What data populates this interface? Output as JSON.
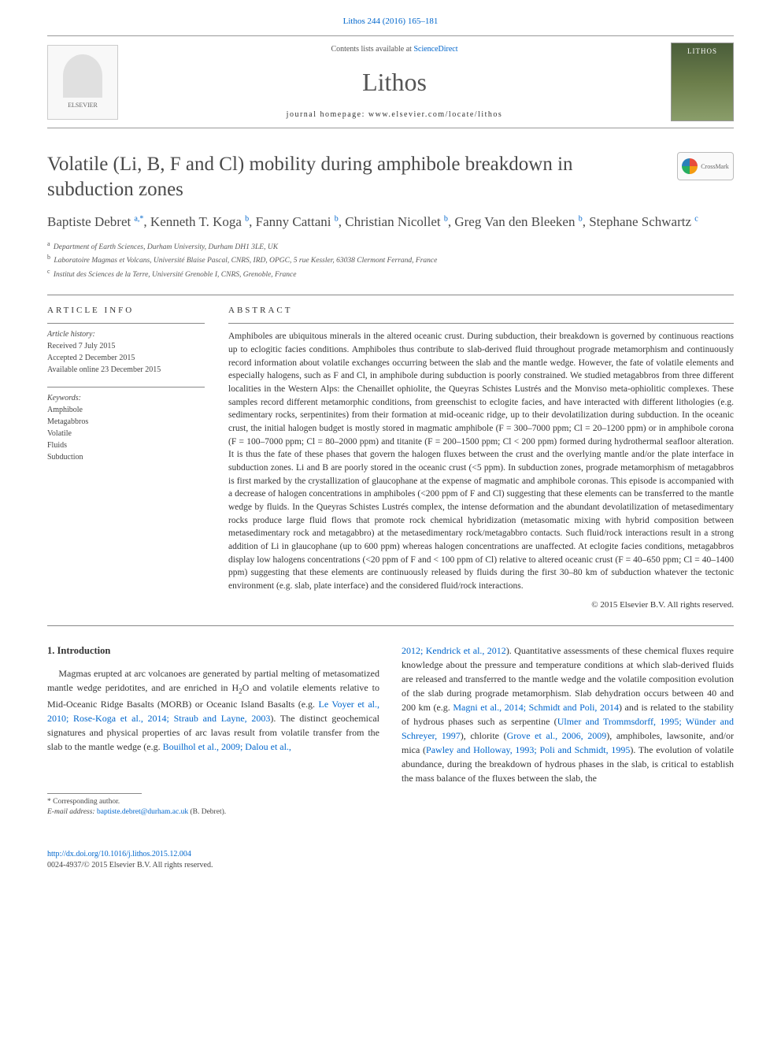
{
  "journal_ref": "Lithos 244 (2016) 165–181",
  "header": {
    "contents_prefix": "Contents lists available at ",
    "contents_link": "ScienceDirect",
    "journal_name": "Lithos",
    "homepage_prefix": "journal homepage: ",
    "homepage_url": "www.elsevier.com/locate/lithos",
    "elsevier_label": "ELSEVIER"
  },
  "crossmark_label": "CrossMark",
  "title": "Volatile (Li, B, F and Cl) mobility during amphibole breakdown in subduction zones",
  "authors_html": "Baptiste Debret <sup>a,*</sup>, Kenneth T. Koga <sup>b</sup>, Fanny Cattani <sup>b</sup>, Christian Nicollet <sup>b</sup>, Greg Van den Bleeken <sup>b</sup>, Stephane Schwartz <sup>c</sup>",
  "affiliations": [
    {
      "tag": "a",
      "text": "Department of Earth Sciences, Durham University, Durham DH1 3LE, UK"
    },
    {
      "tag": "b",
      "text": "Laboratoire Magmas et Volcans, Université Blaise Pascal, CNRS, IRD, OPGC, 5 rue Kessler, 63038 Clermont Ferrand, France"
    },
    {
      "tag": "c",
      "text": "Institut des Sciences de la Terre, Université Grenoble I, CNRS, Grenoble, France"
    }
  ],
  "article_info": {
    "label": "ARTICLE INFO",
    "history_label": "Article history:",
    "history": [
      "Received 7 July 2015",
      "Accepted 2 December 2015",
      "Available online 23 December 2015"
    ],
    "keywords_label": "Keywords:",
    "keywords": [
      "Amphibole",
      "Metagabbros",
      "Volatile",
      "Fluids",
      "Subduction"
    ]
  },
  "abstract": {
    "label": "ABSTRACT",
    "text": "Amphiboles are ubiquitous minerals in the altered oceanic crust. During subduction, their breakdown is governed by continuous reactions up to eclogitic facies conditions. Amphiboles thus contribute to slab-derived fluid throughout prograde metamorphism and continuously record information about volatile exchanges occurring between the slab and the mantle wedge. However, the fate of volatile elements and especially halogens, such as F and Cl, in amphibole during subduction is poorly constrained. We studied metagabbros from three different localities in the Western Alps: the Chenaillet ophiolite, the Queyras Schistes Lustrés and the Monviso meta-ophiolitic complexes. These samples record different metamorphic conditions, from greenschist to eclogite facies, and have interacted with different lithologies (e.g. sedimentary rocks, serpentinites) from their formation at mid-oceanic ridge, up to their devolatilization during subduction. In the oceanic crust, the initial halogen budget is mostly stored in magmatic amphibole (F = 300–7000 ppm; Cl = 20–1200 ppm) or in amphibole corona (F = 100–7000 ppm; Cl = 80–2000 ppm) and titanite (F = 200–1500 ppm; Cl < 200 ppm) formed during hydrothermal seafloor alteration. It is thus the fate of these phases that govern the halogen fluxes between the crust and the overlying mantle and/or the plate interface in subduction zones. Li and B are poorly stored in the oceanic crust (<5 ppm). In subduction zones, prograde metamorphism of metagabbros is first marked by the crystallization of glaucophane at the expense of magmatic and amphibole coronas. This episode is accompanied with a decrease of halogen concentrations in amphiboles (<200 ppm of F and Cl) suggesting that these elements can be transferred to the mantle wedge by fluids. In the Queyras Schistes Lustrés complex, the intense deformation and the abundant devolatilization of metasedimentary rocks produce large fluid flows that promote rock chemical hybridization (metasomatic mixing with hybrid composition between metasedimentary rock and metagabbro) at the metasedimentary rock/metagabbro contacts. Such fluid/rock interactions result in a strong addition of Li in glaucophane (up to 600 ppm) whereas halogen concentrations are unaffected. At eclogite facies conditions, metagabbros display low halogens concentrations (<20 ppm of F and < 100 ppm of Cl) relative to altered oceanic crust (F = 40–650 ppm; Cl = 40–1400 ppm) suggesting that these elements are continuously released by fluids during the first 30–80 km of subduction whatever the tectonic environment (e.g. slab, plate interface) and the considered fluid/rock interactions.",
    "copyright": "© 2015 Elsevier B.V. All rights reserved."
  },
  "body": {
    "section_heading": "1. Introduction",
    "para1_pre": "Magmas erupted at arc volcanoes are generated by partial melting of metasomatized mantle wedge peridotites, and are enriched in H",
    "para1_sub": "2",
    "para1_mid": "O and volatile elements relative to Mid-Oceanic Ridge Basalts (MORB) or Oceanic Island Basalts (e.g. ",
    "para1_link1": "Le Voyer et al., 2010; Rose-Koga et al., 2014; Straub and Layne, 2003",
    "para1_mid2": "). The distinct geochemical signatures and physical properties of arc lavas result from volatile transfer from the slab to the mantle wedge (e.g. ",
    "para1_link2": "Bouilhol et al., 2009; Dalou et al.,",
    "para2_link1": "2012; Kendrick et al., 2012",
    "para2_mid1": "). Quantitative assessments of these chemical fluxes require knowledge about the pressure and temperature conditions at which slab-derived fluids are released and transferred to the mantle wedge and the volatile composition evolution of the slab during prograde metamorphism. Slab dehydration occurs between 40 and 200 km (e.g. ",
    "para2_link2": "Magni et al., 2014; Schmidt and Poli, 2014",
    "para2_mid2": ") and is related to the stability of hydrous phases such as serpentine (",
    "para2_link3": "Ulmer and Trommsdorff, 1995; Wünder and Schreyer, 1997",
    "para2_mid3": "), chlorite (",
    "para2_link4": "Grove et al., 2006, 2009",
    "para2_mid4": "), amphiboles, lawsonite, and/or mica (",
    "para2_link5": "Pawley and Holloway, 1993; Poli and Schmidt, 1995",
    "para2_mid5": "). The evolution of volatile abundance, during the breakdown of hydrous phases in the slab, is critical to establish the mass balance of the fluxes between the slab, the"
  },
  "footnote": {
    "corr": "* Corresponding author.",
    "email_label": "E-mail address: ",
    "email": "baptiste.debret@durham.ac.uk",
    "email_suffix": " (B. Debret)."
  },
  "footer": {
    "doi": "http://dx.doi.org/10.1016/j.lithos.2015.12.004",
    "issn_line": "0024-4937/© 2015 Elsevier B.V. All rights reserved."
  },
  "colors": {
    "link": "#0066cc",
    "text": "#333333",
    "heading": "#4a4a4a",
    "rule": "#888888"
  }
}
